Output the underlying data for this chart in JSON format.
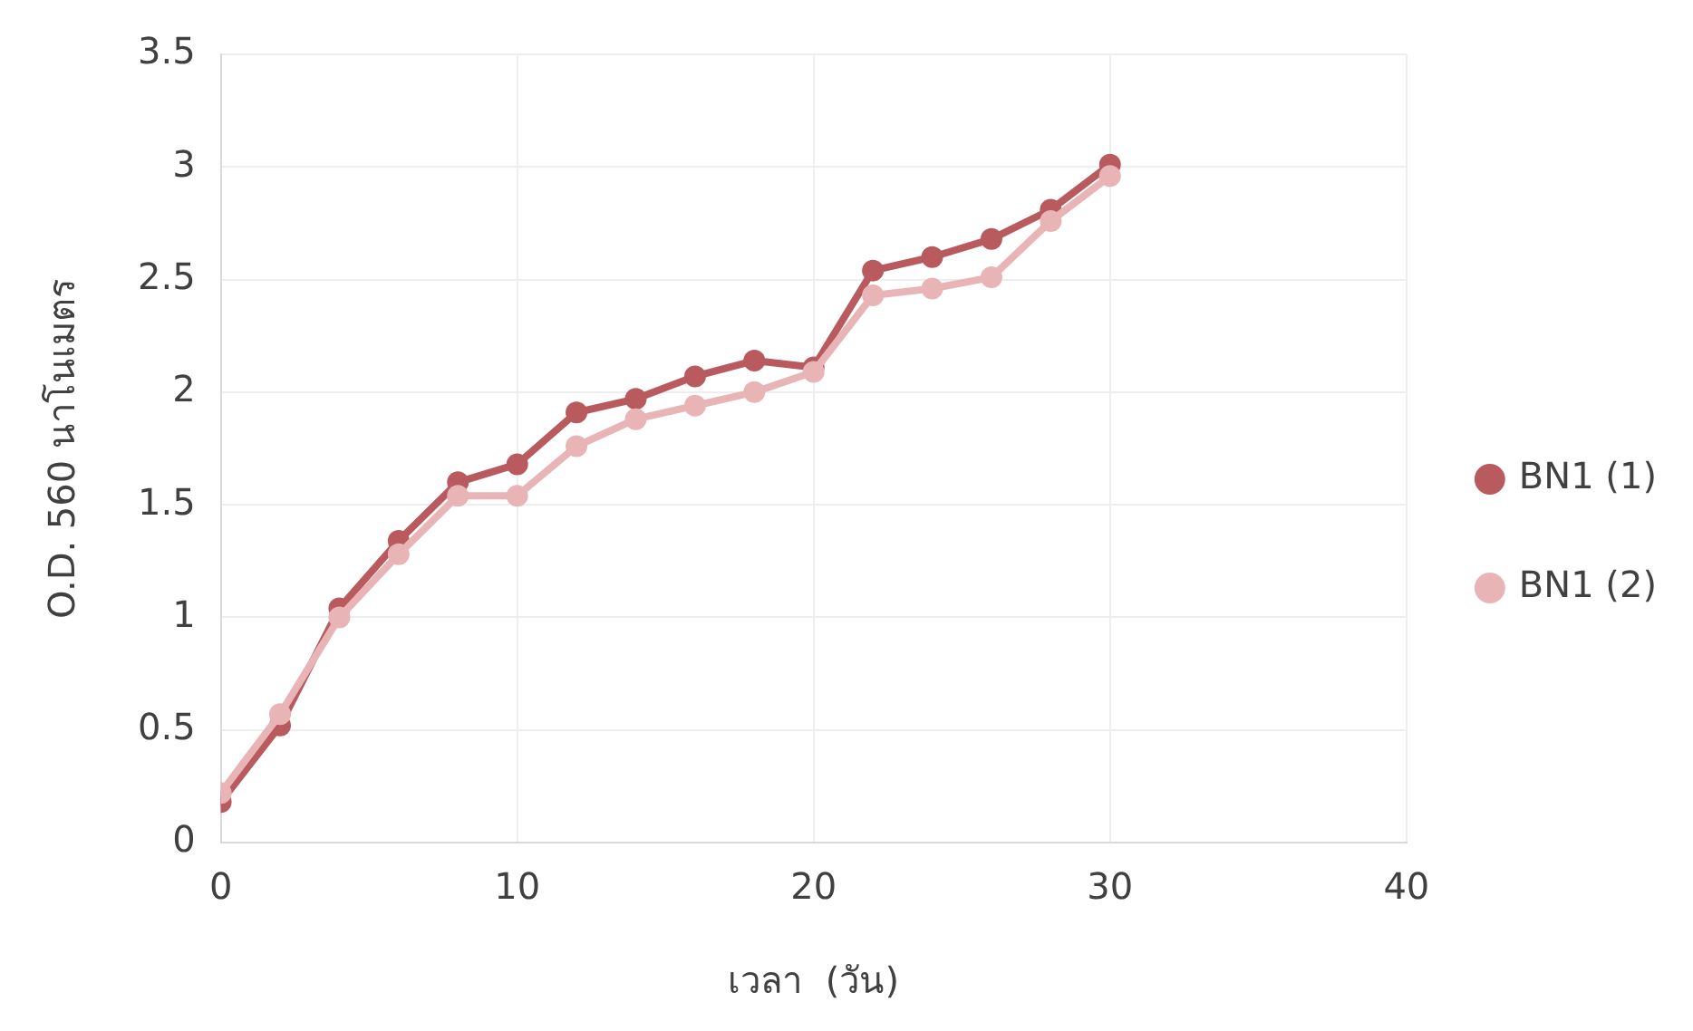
{
  "chart_data": {
    "type": "line",
    "xlabel": "เวลา  (วัน)",
    "ylabel": "O.D. 560 นาโนเมตร",
    "x": [
      0,
      2,
      4,
      6,
      8,
      10,
      12,
      14,
      16,
      18,
      20,
      22,
      24,
      26,
      28,
      30
    ],
    "series": [
      {
        "name": "BN1 (1)",
        "color": "#b85a5e",
        "values": [
          0.18,
          0.52,
          1.04,
          1.34,
          1.6,
          1.68,
          1.91,
          1.97,
          2.07,
          2.14,
          2.11,
          2.54,
          2.6,
          2.68,
          2.81,
          3.01
        ]
      },
      {
        "name": "BN1 (2)",
        "color": "#e8b4b6",
        "values": [
          0.22,
          0.57,
          1.0,
          1.28,
          1.54,
          1.54,
          1.76,
          1.88,
          1.94,
          2.0,
          2.09,
          2.43,
          2.46,
          2.51,
          2.76,
          2.96
        ]
      }
    ],
    "xlim": [
      0,
      40
    ],
    "xticks": [
      0,
      10,
      20,
      30,
      40
    ],
    "ylim": [
      0,
      3.5
    ],
    "yticks": [
      0,
      0.5,
      1,
      1.5,
      2,
      2.5,
      3,
      3.5
    ],
    "grid": true,
    "legend": "right",
    "marker": "circle",
    "line_style": "solid"
  }
}
